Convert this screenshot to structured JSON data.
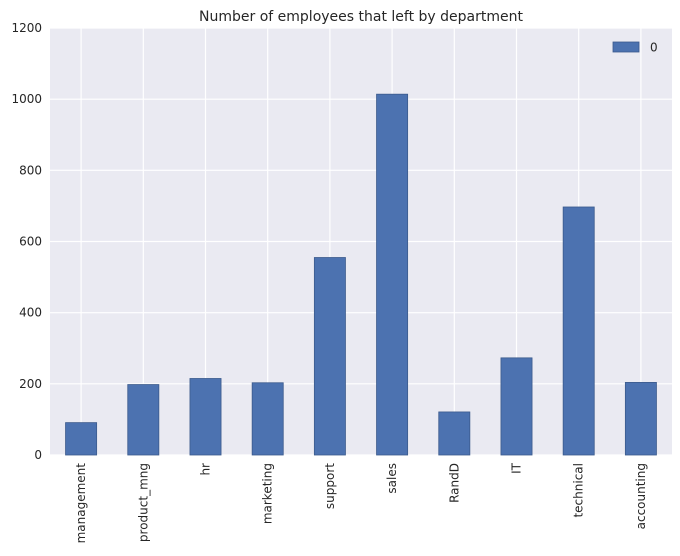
{
  "chart_data": {
    "type": "bar",
    "title": "Number of employees that left by department",
    "xlabel": "",
    "ylabel": "",
    "categories": [
      "management",
      "product_mng",
      "hr",
      "marketing",
      "support",
      "sales",
      "RandD",
      "IT",
      "technical",
      "accounting"
    ],
    "series": [
      {
        "name": "0",
        "values": [
          91,
          198,
          215,
          203,
          555,
          1014,
          121,
          273,
          697,
          204
        ]
      }
    ],
    "ylim": [
      0,
      1200
    ],
    "yticks": [
      0,
      200,
      400,
      600,
      800,
      1000,
      1200
    ],
    "grid": true,
    "legend": "top-right",
    "colors": {
      "bar": "#4c72b0",
      "plot_bg": "#eaeaf2",
      "grid": "#ffffff"
    }
  }
}
